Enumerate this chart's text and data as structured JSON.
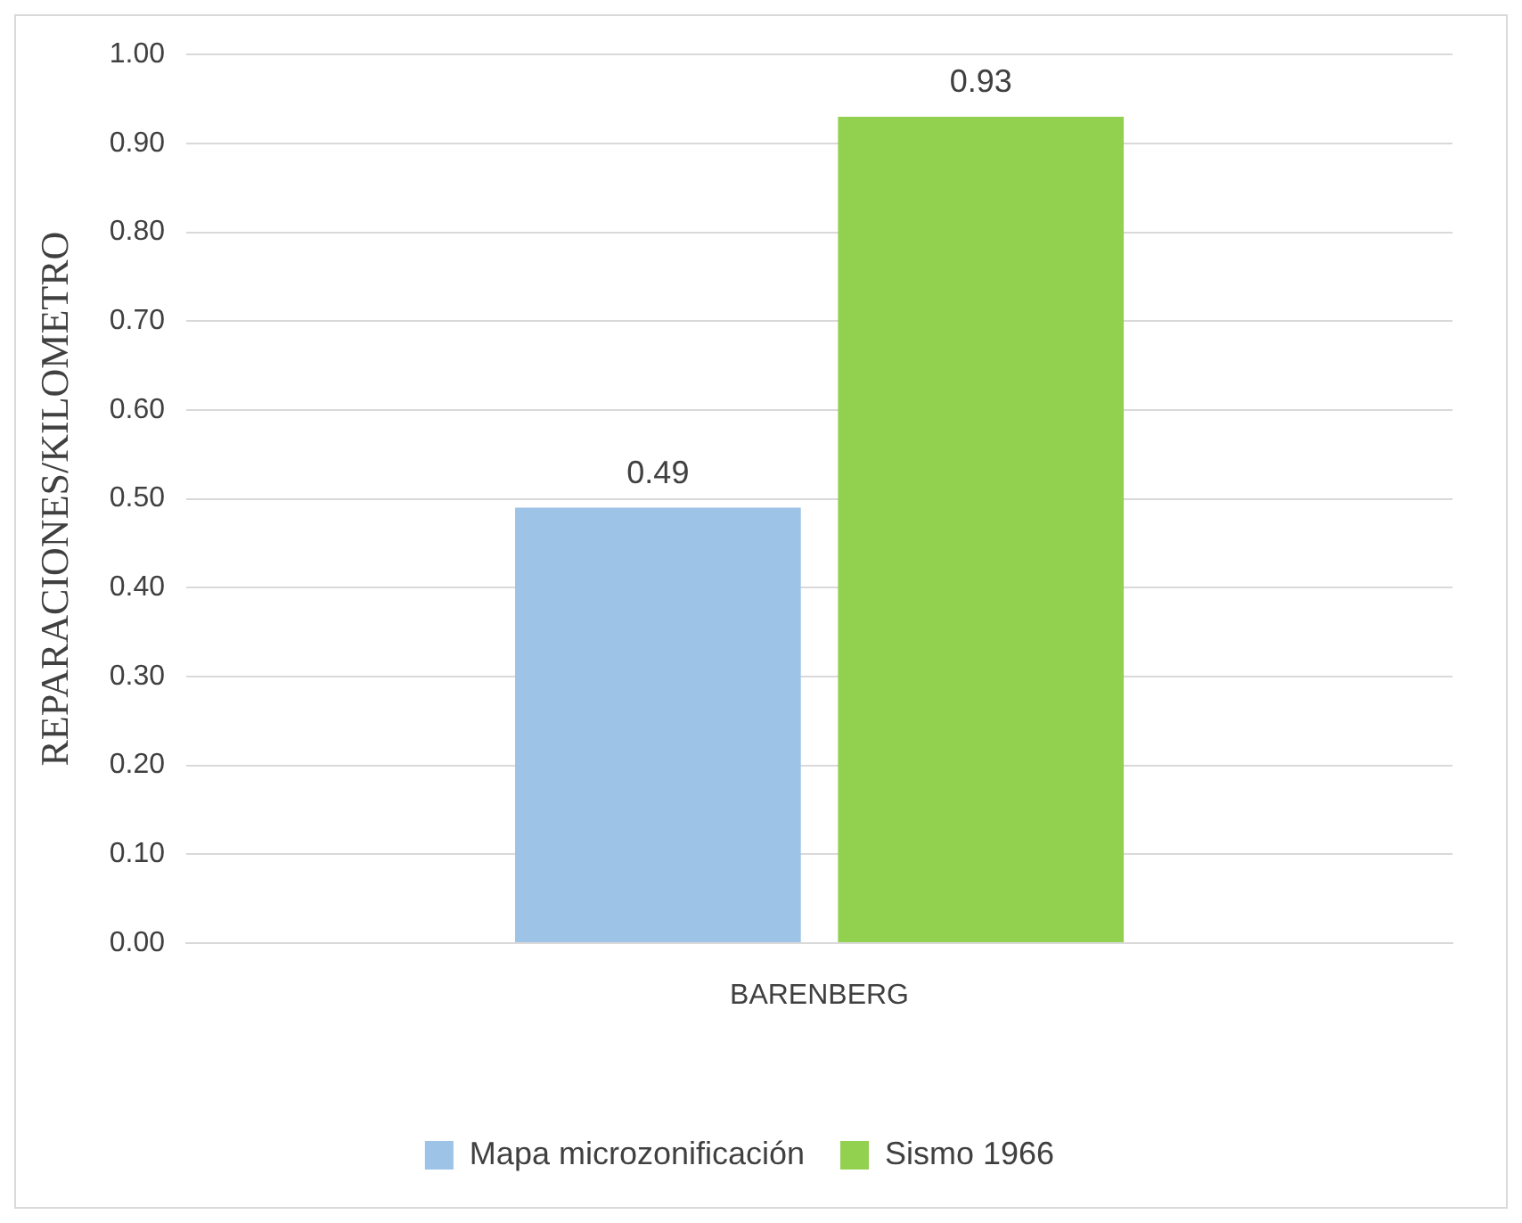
{
  "chart_data": {
    "type": "bar",
    "ylabel": "REPARACIONES/KILOMETRO",
    "categories": [
      "BARENBERG"
    ],
    "series": [
      {
        "name": "Mapa microzonificación",
        "color": "#9dc3e6",
        "values": [
          0.49
        ]
      },
      {
        "name": "Sismo 1966",
        "color": "#92d050",
        "values": [
          0.93
        ]
      }
    ],
    "ylim": [
      0,
      1
    ],
    "yticks": [
      {
        "value": 0,
        "label": "0.00"
      },
      {
        "value": 0.1,
        "label": "0.10"
      },
      {
        "value": 0.2,
        "label": "0.20"
      },
      {
        "value": 0.3,
        "label": "0.30"
      },
      {
        "value": 0.4,
        "label": "0.40"
      },
      {
        "value": 0.5,
        "label": "0.50"
      },
      {
        "value": 0.6,
        "label": "0.60"
      },
      {
        "value": 0.7,
        "label": "0.70"
      },
      {
        "value": 0.8,
        "label": "0.80"
      },
      {
        "value": 0.9,
        "label": "0.90"
      },
      {
        "value": 1,
        "label": "1.00"
      }
    ],
    "grid": "y",
    "legend": "bottom",
    "data_labels": true
  }
}
